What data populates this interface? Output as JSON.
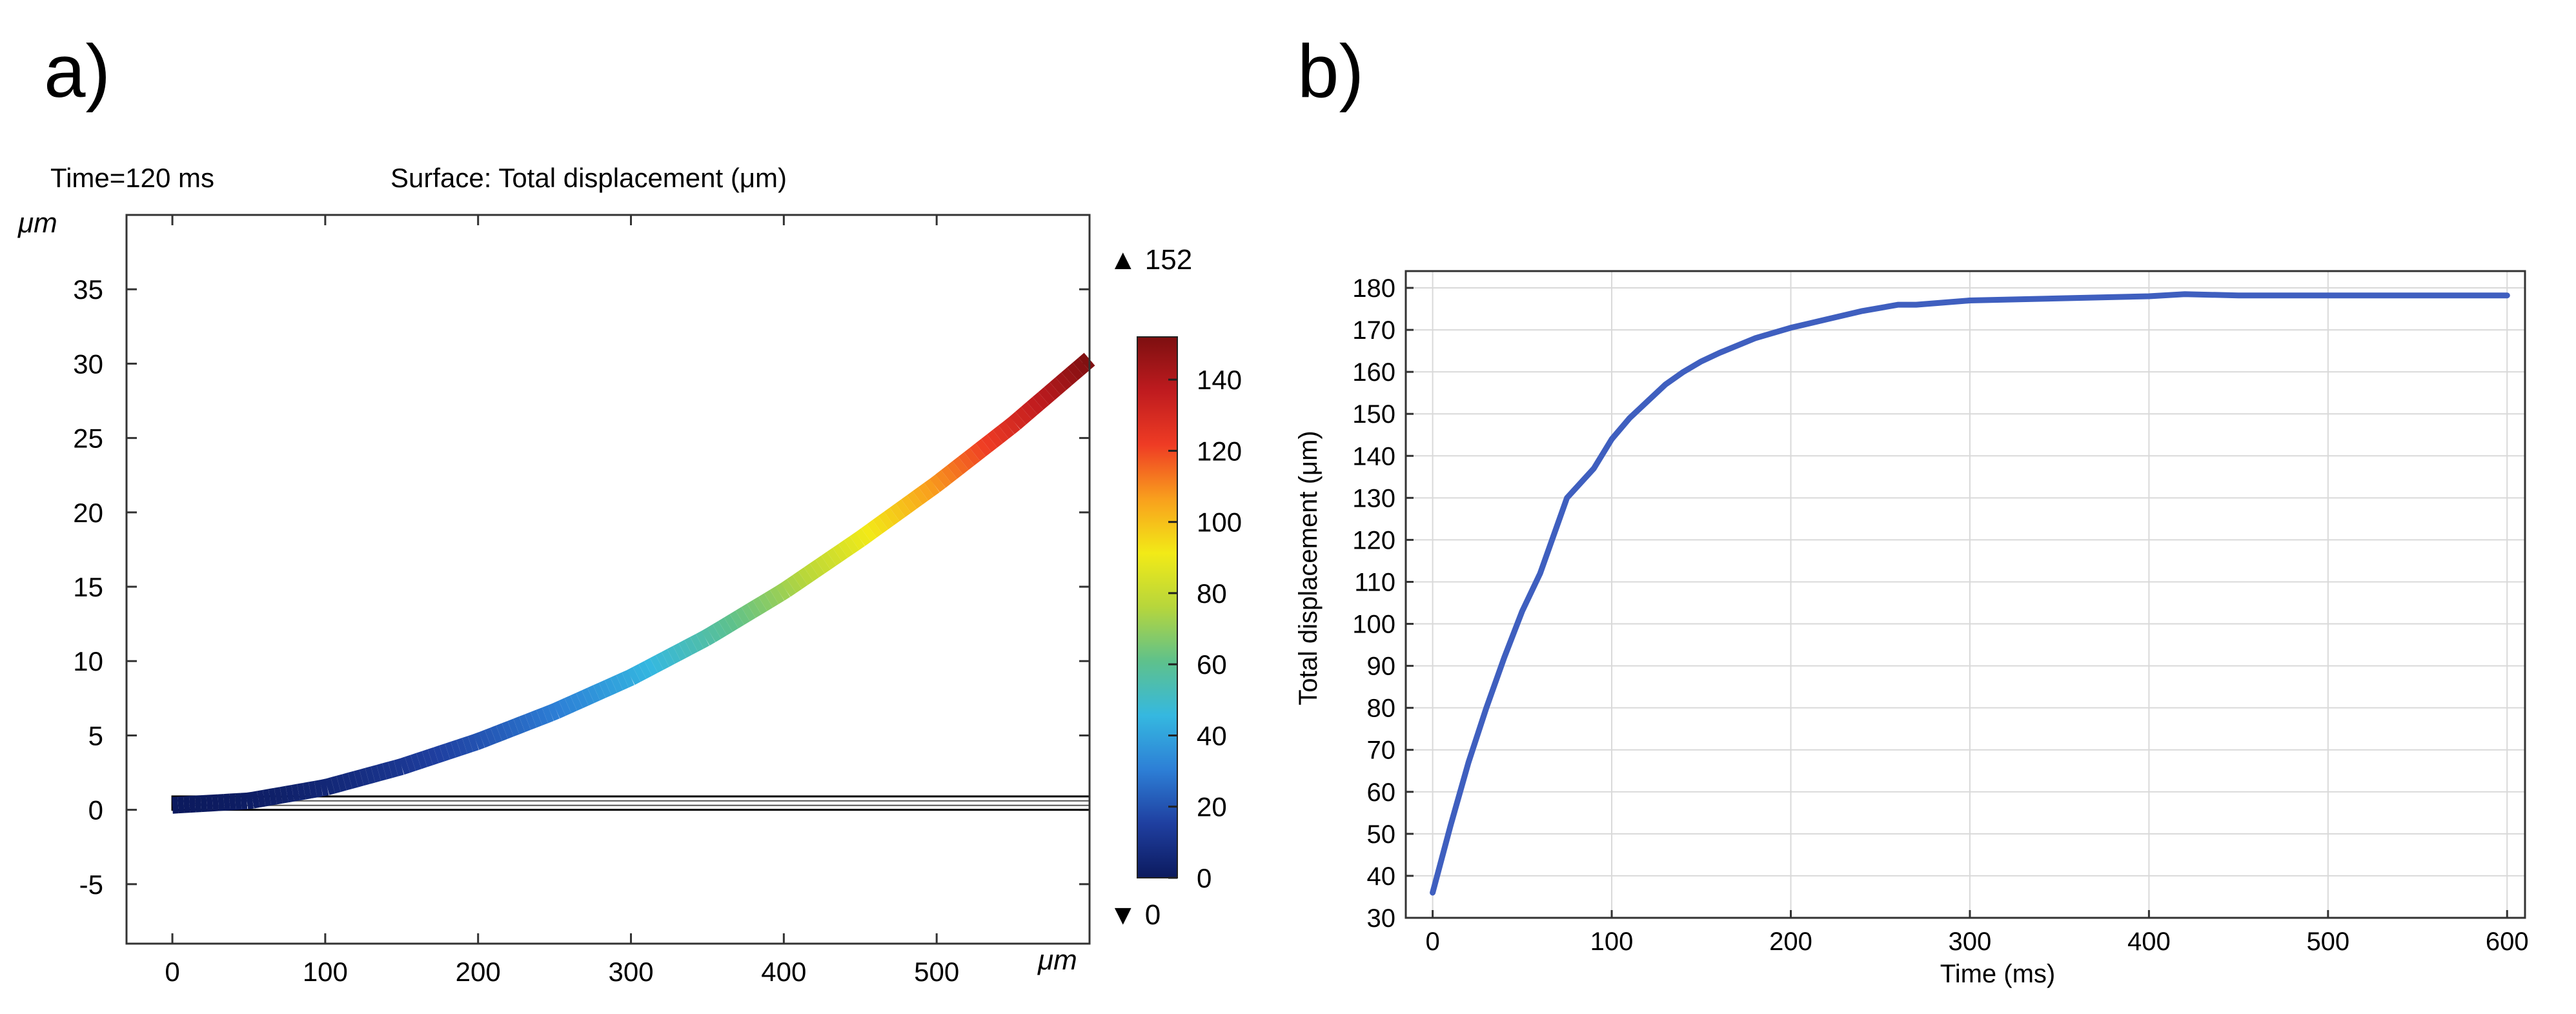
{
  "panel_labels": {
    "a": "a)",
    "b": "b)"
  },
  "colors": {
    "beam_colormap": [
      "#0c1a5e",
      "#1f3fa0",
      "#2d7fd6",
      "#35b8e0",
      "#5ec18c",
      "#b6d63c",
      "#f2ea17",
      "#f9a01d",
      "#ef3c24",
      "#bf1b1f",
      "#7d0f10"
    ],
    "curve": "#3f5fbf",
    "grid": "#d9d9d9",
    "undeformed": "#000000"
  },
  "chart_data": [
    {
      "type": "line",
      "id": "panel-a",
      "time_label": "Time=120 ms",
      "title": "Surface: Total displacement (μm)",
      "xlabel": "μm",
      "ylabel": "μm",
      "xlim": [
        -30,
        600
      ],
      "ylim": [
        -9,
        40
      ],
      "xticks": [
        0,
        100,
        200,
        300,
        400,
        500
      ],
      "yticks": [
        -5,
        0,
        5,
        10,
        15,
        20,
        25,
        30,
        35
      ],
      "deformed_beam": {
        "x": [
          0,
          50,
          100,
          150,
          200,
          250,
          300,
          350,
          400,
          450,
          500,
          550,
          600
        ],
        "y": [
          0.3,
          0.6,
          1.5,
          2.9,
          4.6,
          6.6,
          8.9,
          11.6,
          14.7,
          18.2,
          21.9,
          25.9,
          30.3
        ]
      },
      "undeformed_beam": {
        "x": [
          0,
          600
        ],
        "y": [
          0,
          0.9
        ]
      },
      "colorbar": {
        "min": 0,
        "max": 152,
        "ticks": [
          0,
          20,
          40,
          60,
          80,
          100,
          120,
          140
        ],
        "max_label": "▲ 152",
        "min_label": "▼ 0"
      }
    },
    {
      "type": "line",
      "id": "panel-b",
      "xlabel": "Time (ms)",
      "ylabel": "Total displacement (μm)",
      "xlim": [
        -15,
        610
      ],
      "ylim": [
        30,
        184
      ],
      "xticks": [
        0,
        100,
        200,
        300,
        400,
        500,
        600
      ],
      "yticks": [
        30,
        40,
        50,
        60,
        70,
        80,
        90,
        100,
        110,
        120,
        130,
        140,
        150,
        160,
        170,
        180
      ],
      "series": [
        {
          "name": "Total displacement",
          "x": [
            0,
            10,
            20,
            30,
            40,
            50,
            60,
            75,
            90,
            100,
            110,
            120,
            130,
            140,
            150,
            160,
            180,
            200,
            220,
            240,
            260,
            270,
            300,
            350,
            400,
            420,
            450,
            500,
            550,
            600
          ],
          "y": [
            36,
            52,
            67,
            80,
            92,
            103,
            112,
            130,
            137,
            144,
            149,
            153,
            157,
            160,
            162.5,
            164.5,
            168,
            170.5,
            172.5,
            174.5,
            176,
            176,
            177,
            177.5,
            178,
            178.5,
            178.2,
            178.2,
            178.2,
            178.2
          ]
        }
      ]
    }
  ]
}
